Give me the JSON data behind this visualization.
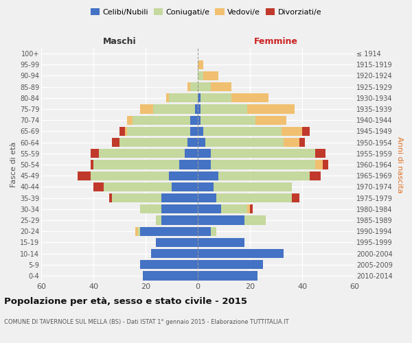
{
  "age_groups": [
    "0-4",
    "5-9",
    "10-14",
    "15-19",
    "20-24",
    "25-29",
    "30-34",
    "35-39",
    "40-44",
    "45-49",
    "50-54",
    "55-59",
    "60-64",
    "65-69",
    "70-74",
    "75-79",
    "80-84",
    "85-89",
    "90-94",
    "95-99",
    "100+"
  ],
  "birth_years": [
    "2010-2014",
    "2005-2009",
    "2000-2004",
    "1995-1999",
    "1990-1994",
    "1985-1989",
    "1980-1984",
    "1975-1979",
    "1970-1974",
    "1965-1969",
    "1960-1964",
    "1955-1959",
    "1950-1954",
    "1945-1949",
    "1940-1944",
    "1935-1939",
    "1930-1934",
    "1925-1929",
    "1920-1924",
    "1915-1919",
    "≤ 1914"
  ],
  "colors": {
    "single": "#4472C4",
    "married": "#c5d89d",
    "widowed": "#f0c070",
    "divorced": "#c0392b"
  },
  "maschi": {
    "single": [
      21,
      22,
      18,
      16,
      22,
      14,
      14,
      14,
      10,
      11,
      7,
      5,
      4,
      3,
      3,
      1,
      0,
      0,
      0,
      0,
      0
    ],
    "married": [
      0,
      0,
      0,
      0,
      1,
      2,
      8,
      19,
      26,
      30,
      33,
      33,
      26,
      24,
      22,
      16,
      11,
      3,
      0,
      0,
      0
    ],
    "widowed": [
      0,
      0,
      0,
      0,
      1,
      0,
      0,
      0,
      0,
      0,
      0,
      0,
      0,
      1,
      2,
      5,
      1,
      1,
      0,
      0,
      0
    ],
    "divorced": [
      0,
      0,
      0,
      0,
      0,
      0,
      0,
      1,
      4,
      5,
      1,
      3,
      3,
      2,
      0,
      0,
      0,
      0,
      0,
      0,
      0
    ]
  },
  "femmine": {
    "single": [
      23,
      25,
      33,
      18,
      5,
      18,
      9,
      7,
      6,
      8,
      5,
      5,
      3,
      2,
      1,
      1,
      1,
      0,
      0,
      0,
      0
    ],
    "married": [
      0,
      0,
      0,
      0,
      2,
      8,
      10,
      29,
      30,
      35,
      40,
      40,
      30,
      30,
      21,
      18,
      12,
      5,
      2,
      0,
      0
    ],
    "widowed": [
      0,
      0,
      0,
      0,
      0,
      0,
      1,
      0,
      0,
      0,
      3,
      0,
      6,
      8,
      12,
      18,
      14,
      8,
      6,
      2,
      0
    ],
    "divorced": [
      0,
      0,
      0,
      0,
      0,
      0,
      1,
      3,
      0,
      4,
      2,
      4,
      2,
      3,
      0,
      0,
      0,
      0,
      0,
      0,
      0
    ]
  },
  "xlim": 60,
  "xticks": [
    -60,
    -40,
    -20,
    0,
    20,
    40,
    60
  ],
  "xtick_labels": [
    "60",
    "40",
    "20",
    "0",
    "20",
    "40",
    "60"
  ],
  "title": "Popolazione per età, sesso e stato civile - 2015",
  "subtitle": "COMUNE DI TAVERNOLE SUL MELLA (BS) - Dati ISTAT 1° gennaio 2015 - Elaborazione TUTTITALIA.IT",
  "ylabel_left": "Fasce di età",
  "ylabel_right": "Anni di nascita",
  "xlabel_maschi": "Maschi",
  "xlabel_femmine": "Femmine",
  "legend_labels": [
    "Celibi/Nubili",
    "Coniugati/e",
    "Vedovi/e",
    "Divorziati/e"
  ],
  "bg_color": "#f0f0f0",
  "grid_color": "#ffffff",
  "bar_height": 0.82,
  "maschi_header_color": "#333333",
  "femmine_header_color": "#cc2222",
  "right_ylabel_color": "#e07020"
}
